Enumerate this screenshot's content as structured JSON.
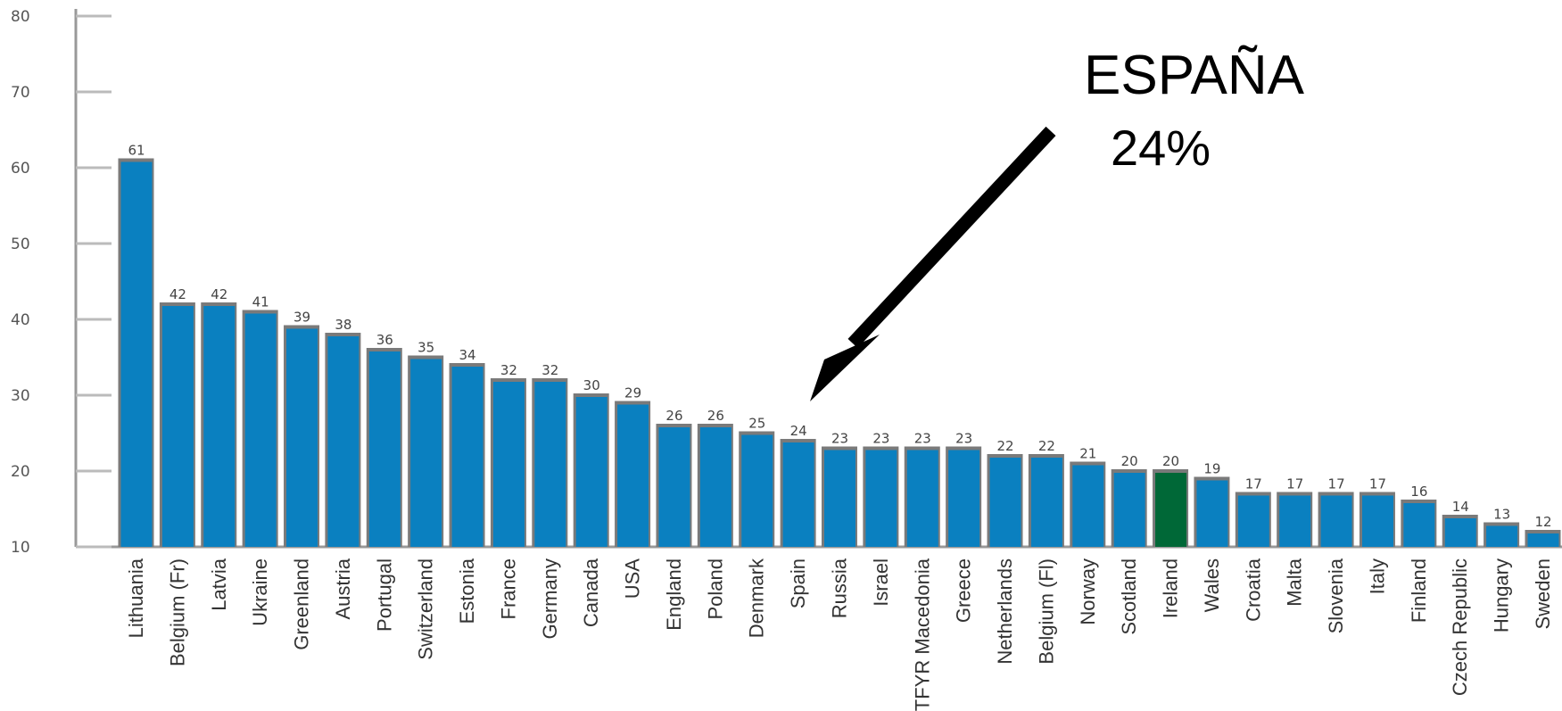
{
  "chart_data": {
    "type": "bar",
    "categories": [
      "Lithuania",
      "Belgium (Fr)",
      "Latvia",
      "Ukraine",
      "Greenland",
      "Austria",
      "Portugal",
      "Switzerland",
      "Estonia",
      "France",
      "Germany",
      "Canada",
      "USA",
      "England",
      "Poland",
      "Denmark",
      "Spain",
      "Russia",
      "Israel",
      "TFYR Macedonia",
      "Greece",
      "Netherlands",
      "Belgium (Fl)",
      "Norway",
      "Scotland",
      "Ireland",
      "Wales",
      "Croatia",
      "Malta",
      "Slovenia",
      "Italy",
      "Finland",
      "Czech Republic",
      "Hungary",
      "Sweden"
    ],
    "values": [
      61,
      42,
      42,
      41,
      39,
      38,
      36,
      35,
      34,
      32,
      32,
      30,
      29,
      26,
      26,
      25,
      24,
      23,
      23,
      23,
      23,
      22,
      22,
      21,
      20,
      20,
      19,
      17,
      17,
      17,
      17,
      16,
      14,
      13,
      12
    ],
    "data_labels": [
      "61",
      "42",
      "42",
      "41",
      "39",
      "38",
      "36",
      "35",
      "34",
      "32",
      "32",
      "30",
      "29",
      "26",
      "26",
      "25",
      "24",
      "23",
      "23",
      "23",
      "23",
      "22",
      "22",
      "21",
      "20",
      "20",
      "19",
      "17",
      "17",
      "17",
      "17",
      "16",
      "14",
      "13",
      "12"
    ],
    "highlight_category": "Ireland",
    "yticks": [
      10,
      20,
      30,
      40,
      50,
      60,
      70,
      80
    ],
    "ylim": [
      10,
      80
    ],
    "title": "",
    "xlabel": "",
    "ylabel": "",
    "grid": false,
    "colors": {
      "bar": "#0a80c0",
      "bar_edge": "#7a7a7a",
      "highlight_bar": "#006837",
      "highlight_label": "#2e8b57",
      "axis": "#999999"
    },
    "annotation": {
      "title": "ESPAÑA",
      "value": "24%",
      "target_category": "Spain"
    }
  }
}
